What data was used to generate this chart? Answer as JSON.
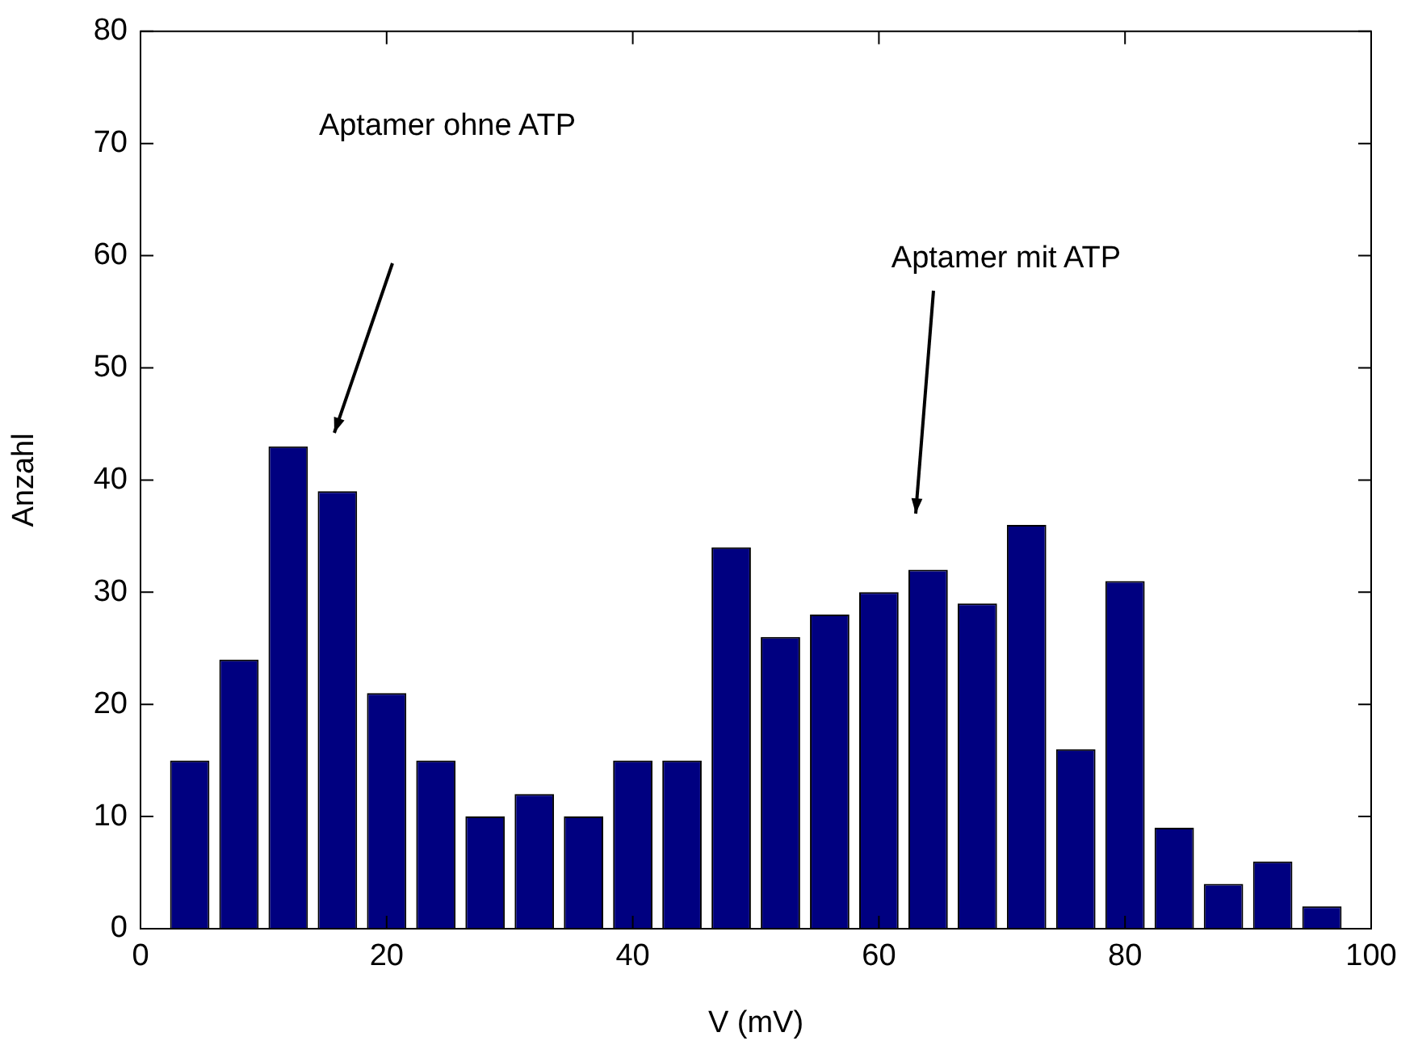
{
  "chart_data": {
    "type": "bar",
    "xlabel": "V (mV)",
    "ylabel": "Anzahl",
    "x": [
      4,
      8,
      12,
      16,
      20,
      24,
      28,
      32,
      36,
      40,
      44,
      48,
      52,
      56,
      60,
      64,
      68,
      72,
      76,
      80,
      84,
      88,
      92,
      96
    ],
    "values": [
      15,
      24,
      43,
      39,
      21,
      15,
      10,
      12,
      10,
      15,
      15,
      34,
      26,
      28,
      30,
      32,
      29,
      36,
      16,
      31,
      9,
      4,
      6,
      2
    ],
    "color": "#000080",
    "xlim": [
      0,
      100
    ],
    "xticks": [
      0,
      20,
      40,
      60,
      80,
      100
    ],
    "ylim": [
      0,
      80
    ],
    "yticks": [
      0,
      10,
      20,
      30,
      40,
      50,
      60,
      70,
      80
    ],
    "annotations": [
      "Aptamer ohne ATP",
      "Aptamer mit ATP"
    ],
    "grid": false,
    "legend": false
  }
}
